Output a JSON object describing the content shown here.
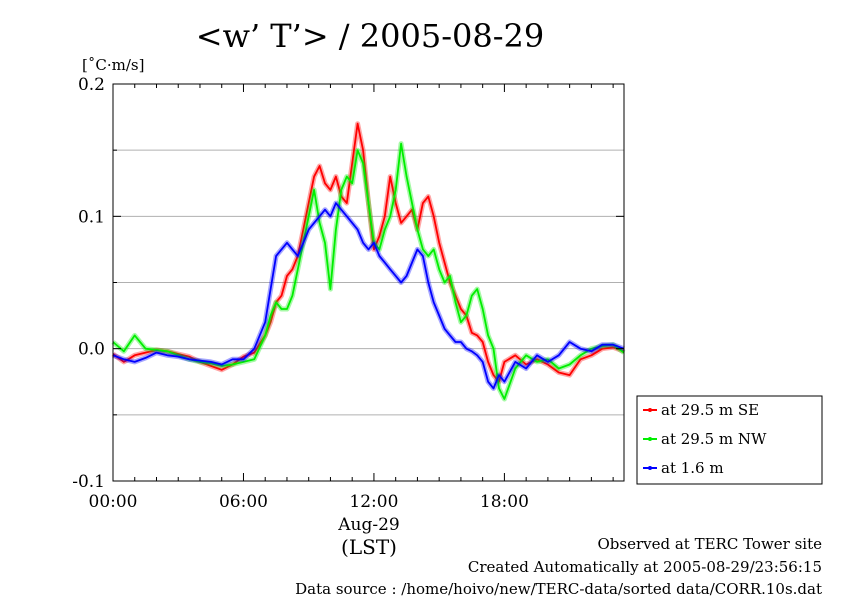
{
  "chart_data": {
    "type": "line",
    "title": "<w’ T’> / 2005-08-29",
    "ylabel": "[˚C·m/s]",
    "xlabel": "(LST)",
    "x_date_label": "Aug-29",
    "xlim": [
      0,
      23.5
    ],
    "ylim": [
      -0.1,
      0.2
    ],
    "yticks": [
      -0.1,
      0.0,
      0.1,
      0.2
    ],
    "ytick_labels": [
      "-0.1",
      "0.0",
      "0.1",
      "0.2"
    ],
    "xticks": [
      0,
      6,
      12,
      18
    ],
    "xtick_labels": [
      "00:00",
      "06:00",
      "12:00",
      "18:00"
    ],
    "grid": "horizontal",
    "legend_position": "right",
    "x": [
      0,
      0.5,
      1,
      1.5,
      2,
      2.5,
      3,
      3.5,
      4,
      4.5,
      5,
      5.5,
      6,
      6.5,
      7,
      7.25,
      7.5,
      7.75,
      8,
      8.25,
      8.5,
      8.75,
      9,
      9.25,
      9.5,
      9.75,
      10,
      10.25,
      10.5,
      10.75,
      11,
      11.25,
      11.5,
      11.75,
      12,
      12.25,
      12.5,
      12.75,
      13,
      13.25,
      13.5,
      13.75,
      14,
      14.25,
      14.5,
      14.75,
      15,
      15.25,
      15.5,
      15.75,
      16,
      16.25,
      16.5,
      16.75,
      17,
      17.25,
      17.5,
      17.75,
      18,
      18.5,
      19,
      19.5,
      20,
      20.5,
      21,
      21.5,
      22,
      22.5,
      23,
      23.5
    ],
    "series": [
      {
        "name": "at 29.5 m SE",
        "color": "#ff0000",
        "values": [
          -0.004,
          -0.01,
          -0.005,
          -0.003,
          -0.001,
          -0.002,
          -0.004,
          -0.006,
          -0.01,
          -0.013,
          -0.016,
          -0.012,
          -0.006,
          -0.003,
          0.01,
          0.02,
          0.035,
          0.04,
          0.055,
          0.06,
          0.07,
          0.09,
          0.11,
          0.13,
          0.138,
          0.125,
          0.12,
          0.13,
          0.115,
          0.11,
          0.14,
          0.17,
          0.15,
          0.11,
          0.075,
          0.085,
          0.1,
          0.13,
          0.11,
          0.095,
          0.1,
          0.105,
          0.09,
          0.11,
          0.115,
          0.1,
          0.08,
          0.065,
          0.05,
          0.04,
          0.03,
          0.025,
          0.012,
          0.01,
          0.005,
          -0.01,
          -0.02,
          -0.025,
          -0.01,
          -0.005,
          -0.012,
          -0.008,
          -0.012,
          -0.018,
          -0.02,
          -0.008,
          -0.005,
          0.0,
          0.001,
          -0.002
        ]
      },
      {
        "name": "at 29.5 m NW",
        "color": "#00ee00",
        "values": [
          0.005,
          -0.002,
          0.01,
          0.0,
          -0.001,
          -0.002,
          -0.005,
          -0.008,
          -0.01,
          -0.011,
          -0.013,
          -0.012,
          -0.01,
          -0.008,
          0.01,
          0.025,
          0.035,
          0.03,
          0.03,
          0.04,
          0.06,
          0.08,
          0.1,
          0.12,
          0.095,
          0.08,
          0.045,
          0.09,
          0.12,
          0.13,
          0.125,
          0.15,
          0.14,
          0.11,
          0.08,
          0.075,
          0.09,
          0.1,
          0.12,
          0.155,
          0.13,
          0.11,
          0.09,
          0.075,
          0.07,
          0.075,
          0.06,
          0.05,
          0.055,
          0.035,
          0.02,
          0.025,
          0.04,
          0.045,
          0.03,
          0.01,
          0.0,
          -0.03,
          -0.038,
          -0.015,
          -0.005,
          -0.01,
          -0.008,
          -0.015,
          -0.012,
          -0.005,
          0.0,
          0.002,
          0.003,
          -0.003
        ]
      },
      {
        "name": "at 1.6 m",
        "color": "#0000ff",
        "values": [
          -0.005,
          -0.008,
          -0.01,
          -0.007,
          -0.003,
          -0.005,
          -0.006,
          -0.008,
          -0.009,
          -0.01,
          -0.012,
          -0.008,
          -0.008,
          0.0,
          0.02,
          0.045,
          0.07,
          0.075,
          0.08,
          0.075,
          0.07,
          0.08,
          0.09,
          0.095,
          0.1,
          0.105,
          0.1,
          0.11,
          0.105,
          0.1,
          0.095,
          0.09,
          0.08,
          0.075,
          0.08,
          0.07,
          0.065,
          0.06,
          0.055,
          0.05,
          0.055,
          0.065,
          0.075,
          0.07,
          0.05,
          0.035,
          0.025,
          0.015,
          0.01,
          0.005,
          0.005,
          0.0,
          -0.002,
          -0.005,
          -0.01,
          -0.025,
          -0.03,
          -0.02,
          -0.025,
          -0.01,
          -0.015,
          -0.005,
          -0.01,
          -0.005,
          0.005,
          0.0,
          -0.002,
          0.003,
          0.003,
          0.0
        ]
      }
    ]
  },
  "footer": {
    "line1": "Observed at TERC Tower site",
    "line2": "Created Automatically at 2005-08-29/23:56:15",
    "line3": "Data source : /home/hoivo/new/TERC-data/sorted  data/CORR.10s.dat"
  }
}
